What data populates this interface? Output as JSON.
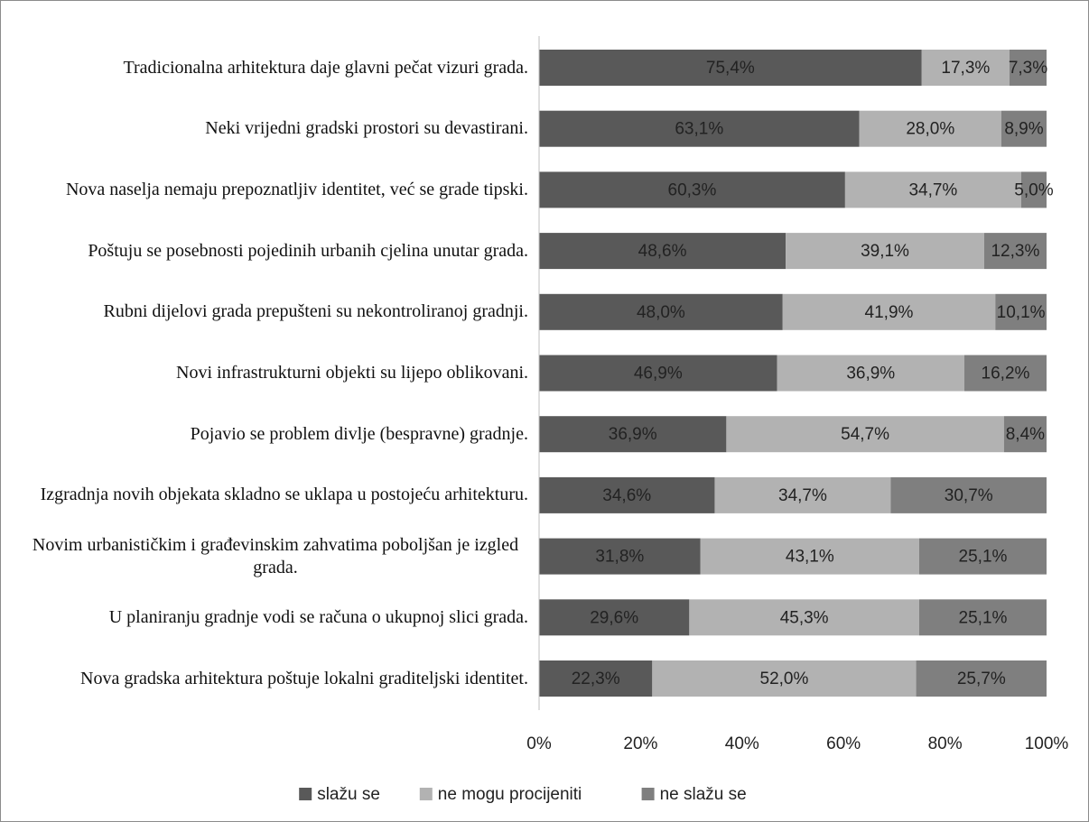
{
  "chart_data": {
    "type": "stacked_bar_horizontal",
    "categories": [
      "Tradicionalna arhitektura daje glavni pečat vizuri grada.",
      "Neki vrijedni gradski prostori su devastirani.",
      "Nova naselja nemaju prepoznatljiv identitet, već se grade tipski.",
      "Poštuju se posebnosti pojedinih urbanih cjelina unutar grada.",
      "Rubni dijelovi grada prepušteni su nekontroliranoj gradnji.",
      "Novi infrastrukturni objekti su lijepo oblikovani.",
      "Pojavio se problem divlje (bespravne) gradnje.",
      "Izgradnja novih objekata skladno se uklapa u postojeću arhitekturu.",
      "Novim urbanističkim i građevinskim zahvatima poboljšan je izgled grada.",
      "U planiranju gradnje vodi se računa o ukupnoj slici grada.",
      "Nova gradska arhitektura poštuje lokalni graditeljski identitet."
    ],
    "series": [
      {
        "name": "slažu se",
        "color": "#595959",
        "values": [
          75.4,
          63.1,
          60.3,
          48.6,
          48.0,
          46.9,
          36.9,
          34.6,
          31.8,
          29.6,
          22.3
        ],
        "value_labels": [
          "75,4%",
          "63,1%",
          "60,3%",
          "48,6%",
          "48,0%",
          "46,9%",
          "36,9%",
          "34,6%",
          "31,8%",
          "29,6%",
          "22,3%"
        ]
      },
      {
        "name": "ne mogu procijeniti",
        "color": "#b2b2b2",
        "values": [
          17.3,
          28.0,
          34.7,
          39.1,
          41.9,
          36.9,
          54.7,
          34.7,
          43.1,
          45.3,
          52.0
        ],
        "value_labels": [
          "17,3%",
          "28,0%",
          "34,7%",
          "39,1%",
          "41,9%",
          "36,9%",
          "54,7%",
          "34,7%",
          "43,1%",
          "45,3%",
          "52,0%"
        ]
      },
      {
        "name": "ne slažu se",
        "color": "#7f7f7f",
        "values": [
          7.3,
          8.9,
          5.0,
          12.3,
          10.1,
          16.2,
          8.4,
          30.7,
          25.1,
          25.1,
          25.7
        ],
        "value_labels": [
          "7,3%",
          "8,9%",
          "5,0%",
          "12,3%",
          "10,1%",
          "16,2%",
          "8,4%",
          "30,7%",
          "25,1%",
          "25,1%",
          "25,7%"
        ]
      }
    ],
    "xlim": [
      0,
      100
    ],
    "xticks": [
      {
        "value": 0,
        "label": "0%"
      },
      {
        "value": 20,
        "label": "20%"
      },
      {
        "value": 40,
        "label": "40%"
      },
      {
        "value": 60,
        "label": "60%"
      },
      {
        "value": 80,
        "label": "80%"
      },
      {
        "value": 100,
        "label": "100%"
      }
    ],
    "legend": "bottom"
  }
}
